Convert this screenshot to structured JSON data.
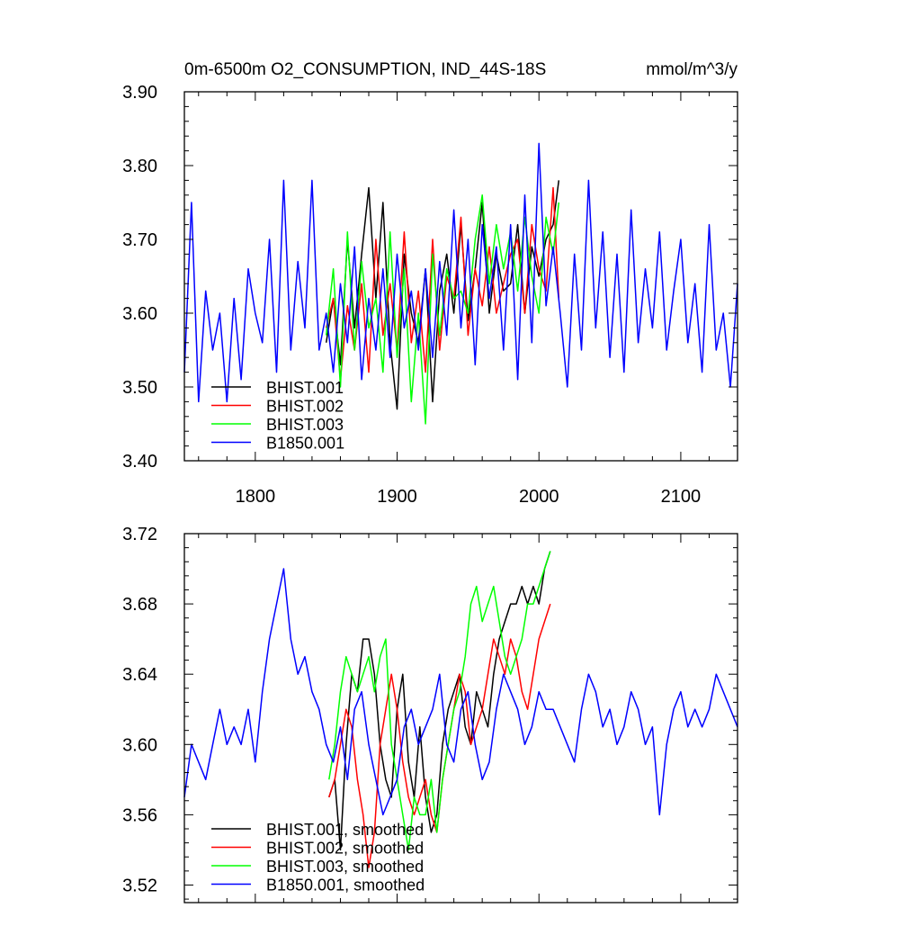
{
  "chart_data": [
    {
      "type": "line",
      "title": "0m-6500m O2_CONSUMPTION, IND_44S-18S",
      "units": "mmol/m^3/y",
      "xlim": [
        1750,
        2140
      ],
      "ylim": [
        3.4,
        3.9
      ],
      "x_ticks": [
        1800,
        1900,
        2000,
        2100
      ],
      "x_tick_labels": [
        "1800",
        "1900",
        "2000",
        "2100"
      ],
      "y_ticks": [
        3.4,
        3.5,
        3.6,
        3.7,
        3.8,
        3.9
      ],
      "y_tick_labels": [
        "3.40",
        "3.50",
        "3.60",
        "3.70",
        "3.80",
        "3.90"
      ],
      "legend_position": "bottom-left",
      "series": [
        {
          "name": "BHIST.001",
          "color": "#000000",
          "x": [
            1850,
            1855,
            1860,
            1865,
            1870,
            1875,
            1880,
            1885,
            1890,
            1895,
            1900,
            1905,
            1910,
            1915,
            1920,
            1925,
            1930,
            1935,
            1940,
            1945,
            1950,
            1955,
            1960,
            1965,
            1970,
            1975,
            1980,
            1985,
            1990,
            1995,
            2000,
            2005,
            2010,
            2014
          ],
          "values": [
            3.56,
            3.62,
            3.53,
            3.7,
            3.58,
            3.68,
            3.77,
            3.62,
            3.75,
            3.56,
            3.47,
            3.68,
            3.6,
            3.56,
            3.66,
            3.48,
            3.63,
            3.68,
            3.6,
            3.72,
            3.59,
            3.66,
            3.75,
            3.6,
            3.68,
            3.63,
            3.64,
            3.72,
            3.6,
            3.69,
            3.65,
            3.7,
            3.72,
            3.78
          ]
        },
        {
          "name": "BHIST.002",
          "color": "#ff0000",
          "x": [
            1850,
            1855,
            1860,
            1865,
            1870,
            1875,
            1880,
            1885,
            1890,
            1895,
            1900,
            1905,
            1910,
            1915,
            1920,
            1925,
            1930,
            1935,
            1940,
            1945,
            1950,
            1955,
            1960,
            1965,
            1970,
            1975,
            1980,
            1985,
            1990,
            1995,
            2000,
            2005,
            2010,
            2014
          ],
          "values": [
            3.58,
            3.62,
            3.51,
            3.61,
            3.55,
            3.64,
            3.52,
            3.7,
            3.57,
            3.64,
            3.55,
            3.71,
            3.56,
            3.63,
            3.52,
            3.7,
            3.55,
            3.65,
            3.62,
            3.73,
            3.57,
            3.66,
            3.61,
            3.69,
            3.6,
            3.64,
            3.68,
            3.7,
            3.6,
            3.72,
            3.66,
            3.63,
            3.77,
            3.62
          ]
        },
        {
          "name": "BHIST.003",
          "color": "#00ff00",
          "x": [
            1850,
            1855,
            1860,
            1865,
            1870,
            1875,
            1880,
            1885,
            1890,
            1895,
            1900,
            1905,
            1910,
            1915,
            1920,
            1925,
            1930,
            1935,
            1940,
            1945,
            1950,
            1955,
            1960,
            1965,
            1970,
            1975,
            1980,
            1985,
            1990,
            1995,
            2000,
            2005,
            2010,
            2014
          ],
          "values": [
            3.57,
            3.66,
            3.5,
            3.71,
            3.55,
            3.67,
            3.58,
            3.62,
            3.52,
            3.71,
            3.54,
            3.66,
            3.48,
            3.6,
            3.45,
            3.68,
            3.57,
            3.66,
            3.62,
            3.63,
            3.6,
            3.7,
            3.76,
            3.64,
            3.72,
            3.66,
            3.71,
            3.63,
            3.73,
            3.65,
            3.6,
            3.73,
            3.68,
            3.75
          ]
        },
        {
          "name": "B1850.001",
          "color": "#0000ff",
          "x": [
            1750,
            1755,
            1760,
            1765,
            1770,
            1775,
            1780,
            1785,
            1790,
            1795,
            1800,
            1805,
            1810,
            1815,
            1820,
            1825,
            1830,
            1835,
            1840,
            1845,
            1850,
            1855,
            1860,
            1865,
            1870,
            1875,
            1880,
            1885,
            1890,
            1895,
            1900,
            1905,
            1910,
            1915,
            1920,
            1925,
            1930,
            1935,
            1940,
            1945,
            1950,
            1955,
            1960,
            1965,
            1970,
            1975,
            1980,
            1985,
            1990,
            1995,
            2000,
            2005,
            2010,
            2015,
            2020,
            2025,
            2030,
            2035,
            2040,
            2045,
            2050,
            2055,
            2060,
            2065,
            2070,
            2075,
            2080,
            2085,
            2090,
            2095,
            2100,
            2105,
            2110,
            2115,
            2120,
            2125,
            2130,
            2135,
            2140
          ],
          "values": [
            3.52,
            3.75,
            3.48,
            3.63,
            3.55,
            3.6,
            3.48,
            3.62,
            3.51,
            3.66,
            3.6,
            3.56,
            3.7,
            3.52,
            3.78,
            3.55,
            3.67,
            3.58,
            3.78,
            3.55,
            3.6,
            3.52,
            3.64,
            3.56,
            3.69,
            3.51,
            3.62,
            3.55,
            3.66,
            3.54,
            3.68,
            3.58,
            3.63,
            3.55,
            3.66,
            3.54,
            3.67,
            3.57,
            3.74,
            3.58,
            3.7,
            3.53,
            3.72,
            3.62,
            3.69,
            3.55,
            3.72,
            3.51,
            3.76,
            3.56,
            3.83,
            3.61,
            3.69,
            3.6,
            3.5,
            3.68,
            3.55,
            3.78,
            3.58,
            3.71,
            3.54,
            3.68,
            3.52,
            3.74,
            3.56,
            3.66,
            3.58,
            3.71,
            3.55,
            3.63,
            3.7,
            3.56,
            3.64,
            3.52,
            3.72,
            3.55,
            3.6,
            3.5,
            3.64
          ]
        }
      ]
    },
    {
      "type": "line",
      "title": "",
      "xlim": [
        1750,
        2140
      ],
      "ylim": [
        3.51,
        3.72
      ],
      "x_ticks": [
        1800,
        1900,
        2000,
        2100
      ],
      "y_ticks": [
        3.52,
        3.56,
        3.6,
        3.64,
        3.68,
        3.72
      ],
      "y_tick_labels": [
        "3.52",
        "3.56",
        "3.60",
        "3.64",
        "3.68",
        "3.72"
      ],
      "legend_position": "bottom-left",
      "series": [
        {
          "name": "BHIST.001, smoothed",
          "color": "#000000",
          "x": [
            1852,
            1856,
            1860,
            1864,
            1868,
            1872,
            1876,
            1880,
            1884,
            1888,
            1892,
            1896,
            1900,
            1904,
            1908,
            1912,
            1916,
            1920,
            1924,
            1928,
            1932,
            1936,
            1940,
            1944,
            1948,
            1952,
            1956,
            1960,
            1964,
            1968,
            1972,
            1976,
            1980,
            1984,
            1988,
            1992,
            1996,
            2000,
            2004,
            2008
          ],
          "values": [
            3.57,
            3.58,
            3.54,
            3.6,
            3.64,
            3.63,
            3.66,
            3.66,
            3.64,
            3.6,
            3.58,
            3.57,
            3.62,
            3.64,
            3.59,
            3.57,
            3.61,
            3.57,
            3.55,
            3.56,
            3.6,
            3.62,
            3.63,
            3.64,
            3.61,
            3.6,
            3.63,
            3.62,
            3.61,
            3.64,
            3.66,
            3.67,
            3.68,
            3.68,
            3.69,
            3.68,
            3.69,
            3.68,
            3.7,
            3.71
          ]
        },
        {
          "name": "BHIST.002, smoothed",
          "color": "#ff0000",
          "x": [
            1852,
            1856,
            1860,
            1864,
            1868,
            1872,
            1876,
            1880,
            1884,
            1888,
            1892,
            1896,
            1900,
            1904,
            1908,
            1912,
            1916,
            1920,
            1924,
            1928,
            1932,
            1936,
            1940,
            1944,
            1948,
            1952,
            1956,
            1960,
            1964,
            1968,
            1972,
            1976,
            1980,
            1984,
            1988,
            1992,
            1996,
            2000,
            2004,
            2008
          ],
          "values": [
            3.57,
            3.58,
            3.6,
            3.62,
            3.61,
            3.58,
            3.56,
            3.53,
            3.55,
            3.6,
            3.62,
            3.64,
            3.62,
            3.59,
            3.57,
            3.56,
            3.57,
            3.58,
            3.56,
            3.55,
            3.58,
            3.6,
            3.62,
            3.64,
            3.63,
            3.6,
            3.61,
            3.62,
            3.64,
            3.66,
            3.65,
            3.64,
            3.66,
            3.65,
            3.63,
            3.62,
            3.64,
            3.66,
            3.67,
            3.68
          ]
        },
        {
          "name": "BHIST.003, smoothed",
          "color": "#00ff00",
          "x": [
            1852,
            1856,
            1860,
            1864,
            1868,
            1872,
            1876,
            1880,
            1884,
            1888,
            1892,
            1896,
            1900,
            1904,
            1908,
            1912,
            1916,
            1920,
            1924,
            1928,
            1932,
            1936,
            1940,
            1944,
            1948,
            1952,
            1956,
            1960,
            1964,
            1968,
            1972,
            1976,
            1980,
            1984,
            1988,
            1992,
            1996,
            2000,
            2004,
            2008
          ],
          "values": [
            3.58,
            3.6,
            3.63,
            3.65,
            3.64,
            3.63,
            3.64,
            3.65,
            3.63,
            3.65,
            3.66,
            3.6,
            3.58,
            3.56,
            3.54,
            3.57,
            3.56,
            3.56,
            3.58,
            3.55,
            3.58,
            3.6,
            3.62,
            3.63,
            3.65,
            3.68,
            3.69,
            3.67,
            3.68,
            3.69,
            3.67,
            3.65,
            3.64,
            3.65,
            3.66,
            3.68,
            3.68,
            3.69,
            3.7,
            3.71
          ]
        },
        {
          "name": "B1850.001, smoothed",
          "color": "#0000ff",
          "x": [
            1750,
            1755,
            1760,
            1765,
            1770,
            1775,
            1780,
            1785,
            1790,
            1795,
            1800,
            1805,
            1810,
            1815,
            1820,
            1825,
            1830,
            1835,
            1840,
            1845,
            1850,
            1855,
            1860,
            1865,
            1870,
            1875,
            1880,
            1885,
            1890,
            1895,
            1900,
            1905,
            1910,
            1915,
            1920,
            1925,
            1930,
            1935,
            1940,
            1945,
            1950,
            1955,
            1960,
            1965,
            1970,
            1975,
            1980,
            1985,
            1990,
            1995,
            2000,
            2005,
            2010,
            2015,
            2020,
            2025,
            2030,
            2035,
            2040,
            2045,
            2050,
            2055,
            2060,
            2065,
            2070,
            2075,
            2080,
            2085,
            2090,
            2095,
            2100,
            2105,
            2110,
            2115,
            2120,
            2125,
            2130,
            2135,
            2140
          ],
          "values": [
            3.57,
            3.6,
            3.59,
            3.58,
            3.6,
            3.62,
            3.6,
            3.61,
            3.6,
            3.62,
            3.59,
            3.63,
            3.66,
            3.68,
            3.7,
            3.66,
            3.64,
            3.65,
            3.63,
            3.62,
            3.6,
            3.59,
            3.61,
            3.58,
            3.62,
            3.63,
            3.6,
            3.58,
            3.56,
            3.57,
            3.58,
            3.61,
            3.62,
            3.6,
            3.61,
            3.62,
            3.64,
            3.6,
            3.59,
            3.62,
            3.63,
            3.6,
            3.58,
            3.59,
            3.62,
            3.64,
            3.63,
            3.62,
            3.6,
            3.61,
            3.63,
            3.62,
            3.62,
            3.61,
            3.6,
            3.59,
            3.62,
            3.64,
            3.63,
            3.61,
            3.62,
            3.6,
            3.61,
            3.63,
            3.62,
            3.6,
            3.61,
            3.56,
            3.6,
            3.62,
            3.63,
            3.61,
            3.62,
            3.61,
            3.62,
            3.64,
            3.63,
            3.62,
            3.61
          ]
        }
      ]
    }
  ]
}
